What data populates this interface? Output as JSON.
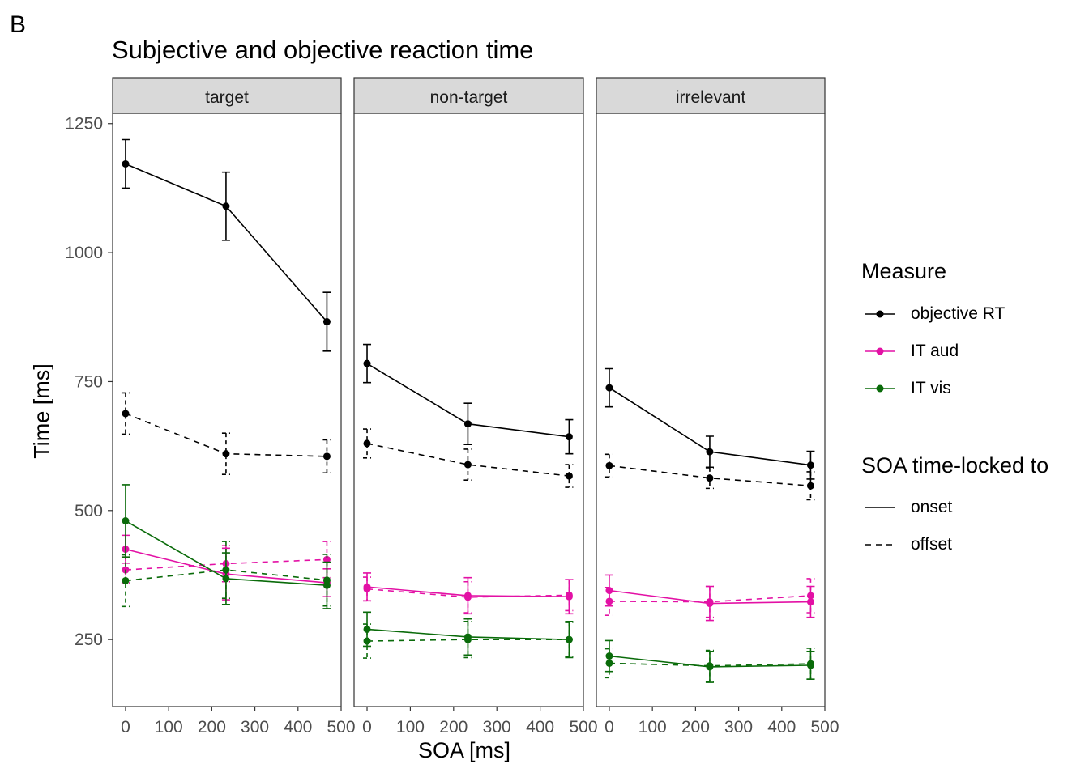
{
  "panel_letter": "B",
  "chart_data": {
    "type": "line",
    "title": "Subjective and objective reaction time",
    "xlabel": "SOA [ms]",
    "ylabel": "Time [ms]",
    "facets": [
      "target",
      "non-target",
      "irrelevant"
    ],
    "x": [
      0,
      233,
      467
    ],
    "xlim": [
      -30,
      500
    ],
    "xticks": [
      0,
      100,
      200,
      300,
      400,
      500
    ],
    "ylim": [
      120,
      1270
    ],
    "yticks": [
      250,
      500,
      750,
      1000,
      1250
    ],
    "grid": false,
    "legend_position": "right",
    "colors": {
      "objective RT": "#000000",
      "IT aud": "#e311a5",
      "IT vis": "#0a6b0a"
    },
    "measures": [
      "objective RT",
      "IT aud",
      "IT vis"
    ],
    "linetypes": [
      "onset",
      "offset"
    ],
    "series": [
      {
        "facet": "target",
        "measure": "objective RT",
        "lock": "onset",
        "values": [
          1172,
          1090,
          866
        ],
        "err": [
          47,
          66,
          57
        ]
      },
      {
        "facet": "target",
        "measure": "objective RT",
        "lock": "offset",
        "values": [
          688,
          610,
          605
        ],
        "err": [
          40,
          40,
          32
        ]
      },
      {
        "facet": "target",
        "measure": "IT aud",
        "lock": "onset",
        "values": [
          425,
          377,
          360
        ],
        "err": [
          27,
          50,
          27
        ]
      },
      {
        "facet": "target",
        "measure": "IT aud",
        "lock": "offset",
        "values": [
          385,
          397,
          405
        ],
        "err": [
          25,
          35,
          35
        ]
      },
      {
        "facet": "target",
        "measure": "IT vis",
        "lock": "onset",
        "values": [
          480,
          368,
          355
        ],
        "err": [
          70,
          50,
          45
        ]
      },
      {
        "facet": "target",
        "measure": "IT vis",
        "lock": "offset",
        "values": [
          364,
          385,
          365
        ],
        "err": [
          50,
          55,
          50
        ]
      },
      {
        "facet": "non-target",
        "measure": "objective RT",
        "lock": "onset",
        "values": [
          785,
          668,
          643
        ],
        "err": [
          37,
          40,
          33
        ]
      },
      {
        "facet": "non-target",
        "measure": "objective RT",
        "lock": "offset",
        "values": [
          630,
          589,
          567
        ],
        "err": [
          28,
          30,
          22
        ]
      },
      {
        "facet": "non-target",
        "measure": "IT aud",
        "lock": "onset",
        "values": [
          352,
          335,
          333
        ],
        "err": [
          27,
          35,
          33
        ]
      },
      {
        "facet": "non-target",
        "measure": "IT aud",
        "lock": "offset",
        "values": [
          348,
          332,
          336
        ],
        "err": [
          23,
          30,
          30
        ]
      },
      {
        "facet": "non-target",
        "measure": "IT vis",
        "lock": "onset",
        "values": [
          270,
          255,
          250
        ],
        "err": [
          33,
          35,
          35
        ]
      },
      {
        "facet": "non-target",
        "measure": "IT vis",
        "lock": "offset",
        "values": [
          247,
          250,
          250
        ],
        "err": [
          33,
          35,
          33
        ]
      },
      {
        "facet": "irrelevant",
        "measure": "objective RT",
        "lock": "onset",
        "values": [
          738,
          614,
          588
        ],
        "err": [
          37,
          30,
          27
        ]
      },
      {
        "facet": "irrelevant",
        "measure": "objective RT",
        "lock": "offset",
        "values": [
          587,
          563,
          548
        ],
        "err": [
          22,
          20,
          27
        ]
      },
      {
        "facet": "irrelevant",
        "measure": "IT aud",
        "lock": "onset",
        "values": [
          345,
          320,
          323
        ],
        "err": [
          30,
          33,
          30
        ]
      },
      {
        "facet": "irrelevant",
        "measure": "IT aud",
        "lock": "offset",
        "values": [
          324,
          323,
          335
        ],
        "err": [
          27,
          30,
          33
        ]
      },
      {
        "facet": "irrelevant",
        "measure": "IT vis",
        "lock": "onset",
        "values": [
          218,
          197,
          200
        ],
        "err": [
          30,
          30,
          27
        ]
      },
      {
        "facet": "irrelevant",
        "measure": "IT vis",
        "lock": "offset",
        "values": [
          204,
          199,
          203
        ],
        "err": [
          28,
          30,
          30
        ]
      }
    ]
  },
  "legend": {
    "measure_title": "Measure",
    "measure_items": [
      "objective RT",
      "IT aud",
      "IT vis"
    ],
    "lock_title": "SOA time-locked to",
    "lock_items": [
      "onset",
      "offset"
    ]
  }
}
